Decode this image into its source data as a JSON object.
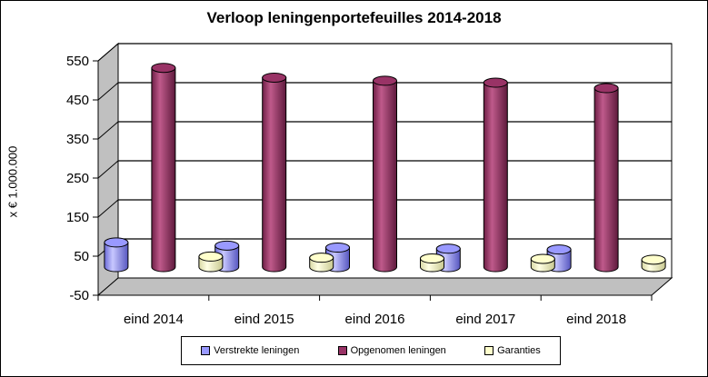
{
  "chart_data": {
    "type": "bar",
    "title": "Verloop leningenportefeuilles 2014-2018",
    "ylabel": "x € 1.000.000",
    "xlabel": "",
    "ylim": [
      -50,
      550
    ],
    "yticks": [
      550,
      450,
      350,
      250,
      150,
      50,
      -50
    ],
    "grid": true,
    "legend_position": "bottom",
    "categories": [
      "eind 2014",
      "eind 2015",
      "eind 2016",
      "eind 2017",
      "eind 2018"
    ],
    "series": [
      {
        "name": "Verstrekte leningen",
        "color": "#9999ff",
        "values": [
          63,
          55,
          50,
          47,
          45
        ]
      },
      {
        "name": "Opgenomen leningen",
        "color": "#993366",
        "values": [
          510,
          485,
          477,
          472,
          458
        ]
      },
      {
        "name": "Garanties",
        "color": "#ffffcc",
        "values": [
          27,
          24,
          22,
          21,
          19
        ]
      }
    ]
  }
}
